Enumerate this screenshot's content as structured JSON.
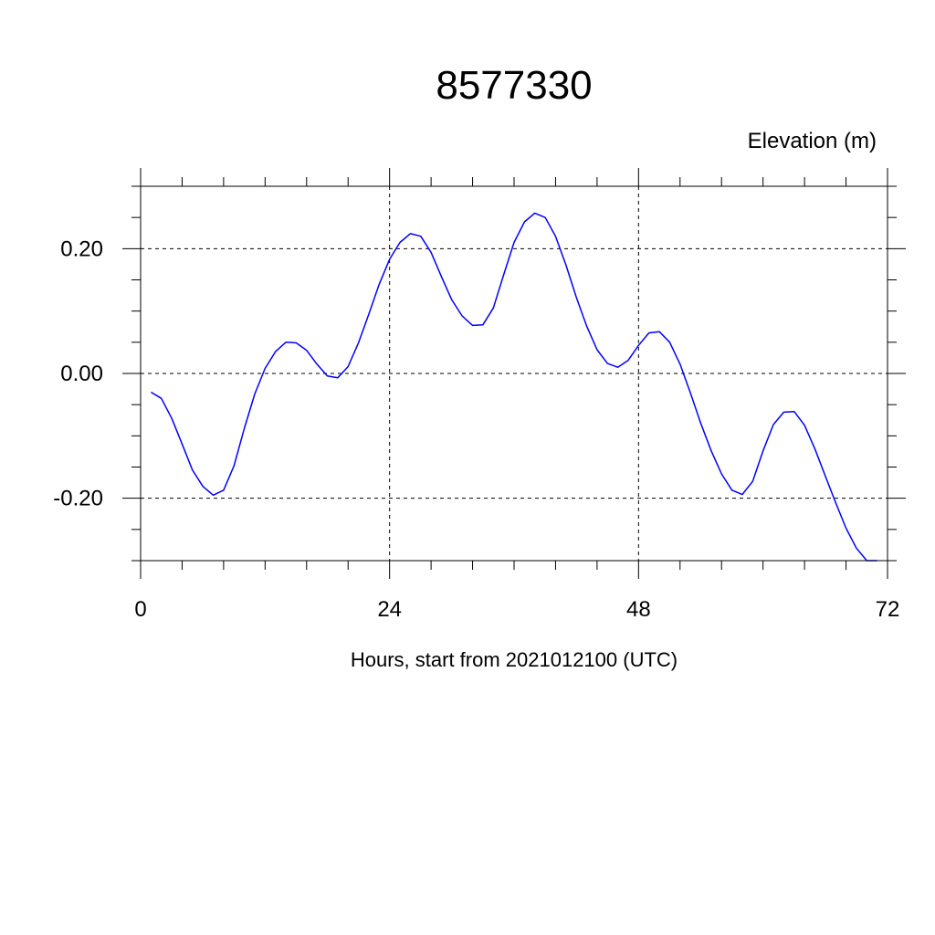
{
  "chart_data": {
    "type": "line",
    "title": "8577330",
    "ylabel": "Elevation (m)",
    "xlabel": "Hours, start from 2021012100 (UTC)",
    "xlim": [
      0,
      72
    ],
    "ylim": [
      -0.3,
      0.3
    ],
    "x_ticks": [
      0,
      24,
      48,
      72
    ],
    "x_tick_labels": [
      "0",
      "24",
      "48",
      "72"
    ],
    "y_ticks": [
      -0.2,
      0.0,
      0.2
    ],
    "y_tick_labels": [
      "-0.20",
      "0.00",
      "0.20"
    ],
    "grid": true,
    "series": [
      {
        "color": "#0000ff",
        "x": [
          1,
          2,
          3,
          4,
          5,
          6,
          7,
          8,
          9,
          10,
          11,
          12,
          13,
          14,
          15,
          16,
          17,
          18,
          19,
          20,
          21,
          22,
          23,
          24,
          25,
          26,
          27,
          28,
          29,
          30,
          31,
          32,
          33,
          34,
          35,
          36,
          37,
          38,
          39,
          40,
          41,
          42,
          43,
          44,
          45,
          46,
          47,
          48,
          49,
          50,
          51,
          52,
          53,
          54,
          55,
          56,
          57,
          58,
          59,
          60,
          61,
          62,
          63,
          64,
          65,
          66,
          67,
          68,
          69,
          70,
          71
        ],
        "y": [
          -0.03,
          -0.04,
          -0.072,
          -0.113,
          -0.155,
          -0.181,
          -0.195,
          -0.187,
          -0.148,
          -0.088,
          -0.033,
          0.008,
          0.035,
          0.05,
          0.049,
          0.037,
          0.015,
          -0.004,
          -0.007,
          0.011,
          0.049,
          0.095,
          0.143,
          0.183,
          0.21,
          0.224,
          0.22,
          0.194,
          0.155,
          0.118,
          0.092,
          0.077,
          0.078,
          0.105,
          0.158,
          0.21,
          0.243,
          0.257,
          0.25,
          0.22,
          0.174,
          0.122,
          0.076,
          0.038,
          0.016,
          0.01,
          0.021,
          0.045,
          0.065,
          0.067,
          0.05,
          0.015,
          -0.031,
          -0.08,
          -0.124,
          -0.161,
          -0.187,
          -0.194,
          -0.173,
          -0.124,
          -0.082,
          -0.062,
          -0.061,
          -0.083,
          -0.121,
          -0.164,
          -0.207,
          -0.248,
          -0.28,
          -0.3,
          -0.3
        ]
      }
    ]
  }
}
